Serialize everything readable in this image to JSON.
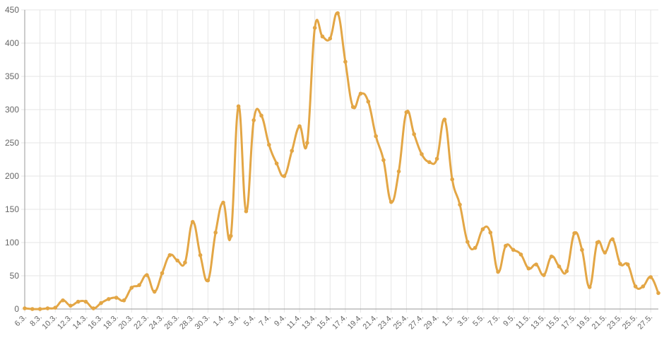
{
  "chart_data": {
    "type": "line",
    "title": "",
    "xlabel": "",
    "ylabel": "",
    "ylim": [
      0,
      450
    ],
    "yticks": [
      0,
      50,
      100,
      150,
      200,
      250,
      300,
      350,
      400,
      450
    ],
    "grid": true,
    "legend": null,
    "line_color": "#E3A645",
    "x": [
      "6.3.",
      "7.3.",
      "8.3.",
      "9.3.",
      "10.3.",
      "11.3.",
      "12.3.",
      "13.3.",
      "14.3.",
      "15.3.",
      "16.3.",
      "17.3.",
      "18.3.",
      "19.3.",
      "20.3.",
      "21.3.",
      "22.3.",
      "23.3.",
      "24.3.",
      "25.3.",
      "26.3.",
      "27.3.",
      "28.3.",
      "29.3.",
      "30.3.",
      "31.3.",
      "1.4.",
      "2.4.",
      "3.4.",
      "4.4.",
      "5.4.",
      "6.4.",
      "7.4.",
      "8.4.",
      "9.4.",
      "10.4.",
      "11.4.",
      "12.4.",
      "13.4.",
      "14.4.",
      "15.4.",
      "16.4.",
      "17.4.",
      "18.4.",
      "19.4.",
      "20.4.",
      "21.4.",
      "22.4.",
      "23.4.",
      "24.4.",
      "25.4.",
      "26.4.",
      "27.4.",
      "28.4.",
      "29.4.",
      "30.4.",
      "1.5.",
      "2.5.",
      "3.5.",
      "4.5.",
      "5.5.",
      "6.5.",
      "7.5.",
      "8.5.",
      "9.5.",
      "10.5.",
      "11.5.",
      "12.5.",
      "13.5.",
      "14.5.",
      "15.5.",
      "16.5.",
      "17.5.",
      "18.5.",
      "19.5.",
      "20.5.",
      "21.5.",
      "22.5.",
      "23.5.",
      "24.5.",
      "25.5.",
      "26.5.",
      "27.5.",
      "28.5."
    ],
    "x_tick_labels": [
      "6.3.",
      "8.3.",
      "10.3.",
      "12.3.",
      "14.3.",
      "16.3.",
      "18.3.",
      "20.3.",
      "22.3.",
      "24.3.",
      "26.3.",
      "28.3.",
      "30.3.",
      "1.4.",
      "3.4.",
      "5.4.",
      "7.4.",
      "9.4.",
      "11.4.",
      "13.4.",
      "15.4.",
      "17.4.",
      "19.4.",
      "21.4.",
      "23.4.",
      "25.4.",
      "27.4.",
      "29.4.",
      "1.5.",
      "3.5.",
      "5.5.",
      "7.5.",
      "9.5.",
      "11.5.",
      "13.5.",
      "15.5.",
      "17.5.",
      "19.5.",
      "21.5.",
      "23.5.",
      "25.5.",
      "27.5."
    ],
    "values": [
      1,
      0,
      0,
      1,
      2,
      13,
      5,
      11,
      11,
      1,
      9,
      15,
      17,
      13,
      32,
      36,
      51,
      26,
      54,
      81,
      73,
      70,
      131,
      81,
      43,
      115,
      160,
      110,
      305,
      147,
      284,
      291,
      247,
      219,
      200,
      238,
      275,
      250,
      423,
      410,
      407,
      445,
      372,
      304,
      324,
      312,
      260,
      224,
      161,
      207,
      296,
      263,
      233,
      221,
      226,
      285,
      195,
      157,
      101,
      92,
      120,
      115,
      56,
      95,
      89,
      82,
      61,
      67,
      51,
      79,
      64,
      57,
      114,
      89,
      33,
      100,
      85,
      105,
      68,
      67,
      34,
      34,
      48,
      24
    ]
  }
}
